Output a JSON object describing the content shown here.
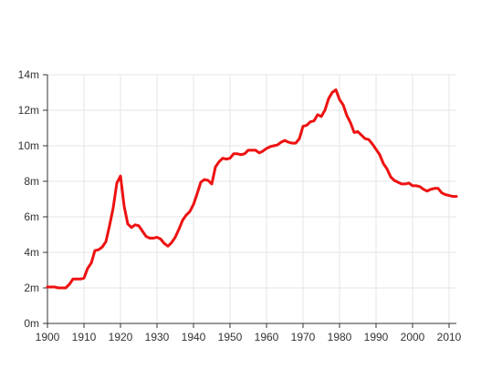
{
  "chart_data": {
    "type": "line",
    "title": "",
    "xlabel": "",
    "ylabel": "",
    "xlim": [
      1900,
      2012
    ],
    "ylim": [
      0,
      14
    ],
    "grid": true,
    "x_ticks": [
      1900,
      1910,
      1920,
      1930,
      1940,
      1950,
      1960,
      1970,
      1980,
      1990,
      2000,
      2010
    ],
    "x_tick_labels": [
      "1900",
      "1910",
      "1920",
      "1930",
      "1940",
      "1950",
      "1960",
      "1970",
      "1980",
      "1990",
      "2000",
      "2010"
    ],
    "y_ticks": [
      0,
      2,
      4,
      6,
      8,
      10,
      12,
      14
    ],
    "y_tick_labels": [
      "0m",
      "2m",
      "4m",
      "6m",
      "8m",
      "10m",
      "12m",
      "14m"
    ],
    "series": [
      {
        "color": "#ee1111",
        "points": [
          [
            1900,
            2.05
          ],
          [
            1902,
            2.05
          ],
          [
            1903,
            2.0
          ],
          [
            1905,
            2.0
          ],
          [
            1906,
            2.2
          ],
          [
            1907,
            2.5
          ],
          [
            1909,
            2.5
          ],
          [
            1910,
            2.55
          ],
          [
            1911,
            3.1
          ],
          [
            1912,
            3.4
          ],
          [
            1913,
            4.1
          ],
          [
            1914,
            4.15
          ],
          [
            1915,
            4.3
          ],
          [
            1916,
            4.6
          ],
          [
            1917,
            5.5
          ],
          [
            1918,
            6.5
          ],
          [
            1919,
            7.9
          ],
          [
            1920,
            8.3
          ],
          [
            1921,
            6.6
          ],
          [
            1922,
            5.6
          ],
          [
            1923,
            5.4
          ],
          [
            1924,
            5.55
          ],
          [
            1925,
            5.5
          ],
          [
            1926,
            5.2
          ],
          [
            1927,
            4.9
          ],
          [
            1928,
            4.8
          ],
          [
            1929,
            4.8
          ],
          [
            1930,
            4.85
          ],
          [
            1931,
            4.75
          ],
          [
            1932,
            4.5
          ],
          [
            1933,
            4.35
          ],
          [
            1934,
            4.55
          ],
          [
            1935,
            4.85
          ],
          [
            1936,
            5.3
          ],
          [
            1937,
            5.8
          ],
          [
            1938,
            6.1
          ],
          [
            1939,
            6.3
          ],
          [
            1940,
            6.7
          ],
          [
            1941,
            7.3
          ],
          [
            1942,
            7.95
          ],
          [
            1943,
            8.1
          ],
          [
            1944,
            8.05
          ],
          [
            1945,
            7.85
          ],
          [
            1946,
            8.8
          ],
          [
            1947,
            9.1
          ],
          [
            1948,
            9.3
          ],
          [
            1949,
            9.25
          ],
          [
            1950,
            9.3
          ],
          [
            1951,
            9.55
          ],
          [
            1952,
            9.55
          ],
          [
            1953,
            9.5
          ],
          [
            1954,
            9.55
          ],
          [
            1955,
            9.75
          ],
          [
            1956,
            9.75
          ],
          [
            1957,
            9.75
          ],
          [
            1958,
            9.6
          ],
          [
            1959,
            9.7
          ],
          [
            1960,
            9.85
          ],
          [
            1961,
            9.95
          ],
          [
            1962,
            10.0
          ],
          [
            1963,
            10.05
          ],
          [
            1964,
            10.2
          ],
          [
            1965,
            10.3
          ],
          [
            1966,
            10.2
          ],
          [
            1967,
            10.15
          ],
          [
            1968,
            10.15
          ],
          [
            1969,
            10.4
          ],
          [
            1970,
            11.1
          ],
          [
            1971,
            11.15
          ],
          [
            1972,
            11.35
          ],
          [
            1973,
            11.4
          ],
          [
            1974,
            11.75
          ],
          [
            1975,
            11.65
          ],
          [
            1976,
            12.0
          ],
          [
            1977,
            12.65
          ],
          [
            1978,
            13.0
          ],
          [
            1979,
            13.15
          ],
          [
            1980,
            12.6
          ],
          [
            1981,
            12.3
          ],
          [
            1982,
            11.7
          ],
          [
            1983,
            11.3
          ],
          [
            1984,
            10.75
          ],
          [
            1985,
            10.8
          ],
          [
            1986,
            10.6
          ],
          [
            1987,
            10.4
          ],
          [
            1988,
            10.35
          ],
          [
            1989,
            10.1
          ],
          [
            1990,
            9.8
          ],
          [
            1991,
            9.5
          ],
          [
            1992,
            9.0
          ],
          [
            1993,
            8.7
          ],
          [
            1994,
            8.25
          ],
          [
            1995,
            8.05
          ],
          [
            1996,
            7.95
          ],
          [
            1997,
            7.85
          ],
          [
            1998,
            7.85
          ],
          [
            1999,
            7.9
          ],
          [
            2000,
            7.75
          ],
          [
            2001,
            7.75
          ],
          [
            2002,
            7.7
          ],
          [
            2003,
            7.55
          ],
          [
            2004,
            7.45
          ],
          [
            2005,
            7.55
          ],
          [
            2006,
            7.6
          ],
          [
            2007,
            7.6
          ],
          [
            2008,
            7.35
          ],
          [
            2009,
            7.25
          ],
          [
            2010,
            7.2
          ],
          [
            2011,
            7.15
          ],
          [
            2012,
            7.15
          ]
        ]
      }
    ]
  }
}
